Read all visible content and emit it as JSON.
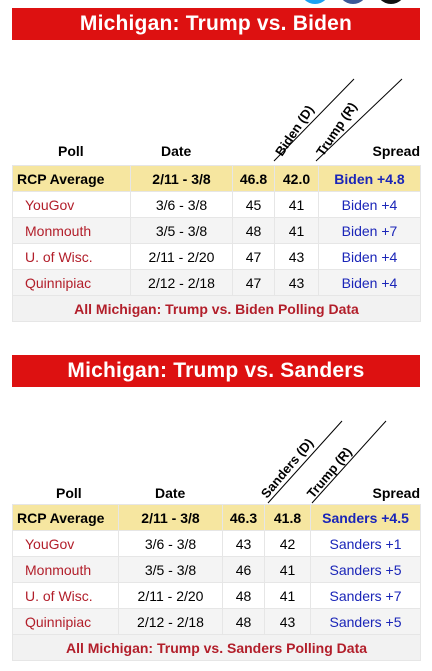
{
  "sections": [
    {
      "title": "Michigan: Trump vs. Biden",
      "headers": {
        "poll": "Poll",
        "date": "Date",
        "cand1": "Biden (D)",
        "cand2": "Trump (R)",
        "spread": "Spread"
      },
      "rows": [
        {
          "poll": "RCP Average",
          "date": "2/11 - 3/8",
          "c1": "46.8",
          "c2": "42.0",
          "spread": "Biden +4.8"
        },
        {
          "poll": "YouGov",
          "date": "3/6 - 3/8",
          "c1": "45",
          "c2": "41",
          "spread": "Biden +4"
        },
        {
          "poll": "Monmouth",
          "date": "3/5 - 3/8",
          "c1": "48",
          "c2": "41",
          "spread": "Biden +7"
        },
        {
          "poll": "U. of Wisc.",
          "date": "2/11 - 2/20",
          "c1": "47",
          "c2": "43",
          "spread": "Biden +4"
        },
        {
          "poll": "Quinnipiac",
          "date": "2/12 - 2/18",
          "c1": "47",
          "c2": "43",
          "spread": "Biden +4"
        }
      ],
      "all_link": "All Michigan: Trump vs. Biden Polling Data"
    },
    {
      "title": "Michigan: Trump vs. Sanders",
      "headers": {
        "poll": "Poll",
        "date": "Date",
        "cand1": "Sanders (D)",
        "cand2": "Trump (R)",
        "spread": "Spread"
      },
      "rows": [
        {
          "poll": "RCP Average",
          "date": "2/11 - 3/8",
          "c1": "46.3",
          "c2": "41.8",
          "spread": "Sanders +4.5"
        },
        {
          "poll": "YouGov",
          "date": "3/6 - 3/8",
          "c1": "43",
          "c2": "42",
          "spread": "Sanders +1"
        },
        {
          "poll": "Monmouth",
          "date": "3/5 - 3/8",
          "c1": "46",
          "c2": "41",
          "spread": "Sanders +5"
        },
        {
          "poll": "U. of Wisc.",
          "date": "2/11 - 2/20",
          "c1": "48",
          "c2": "41",
          "spread": "Sanders +7"
        },
        {
          "poll": "Quinnipiac",
          "date": "2/12 - 2/18",
          "c1": "48",
          "c2": "43",
          "spread": "Sanders +5"
        }
      ],
      "all_link": "All Michigan: Trump vs. Sanders Polling Data"
    }
  ],
  "colors": {
    "banner": "#dd1111",
    "poll_link": "#b21e2a",
    "spread": "#1a25b8",
    "average_row": "#f6e6a0"
  },
  "icons": [
    "twitter-icon",
    "facebook-icon",
    "share-icon"
  ]
}
